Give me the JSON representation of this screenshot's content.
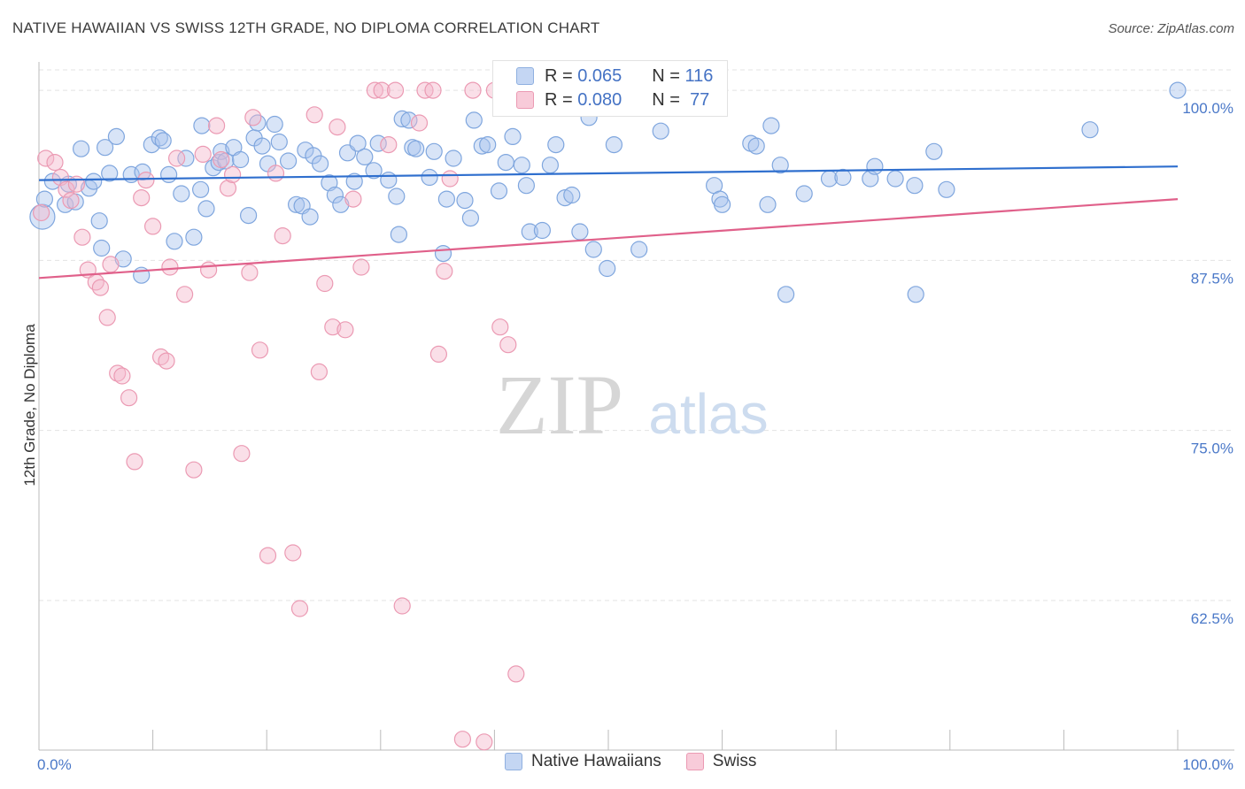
{
  "title": "NATIVE HAWAIIAN VS SWISS 12TH GRADE, NO DIPLOMA CORRELATION CHART",
  "source": "Source: ZipAtlas.com",
  "watermark": {
    "zip": "ZIP",
    "atlas": "atlas"
  },
  "legend": {
    "r_label": "R =",
    "n_label": "N =",
    "series1": {
      "r": "0.065",
      "n": "116"
    },
    "series2": {
      "r": "0.080",
      "n": "77"
    }
  },
  "bottom_legend": [
    "Native Hawaiians",
    "Swiss"
  ],
  "colors": {
    "blue_fill": "#a8c4ee",
    "blue_stroke": "#7fa6de",
    "blue_line": "#2f6fce",
    "pink_fill": "#f5b8cb",
    "pink_stroke": "#eb9ab3",
    "pink_line": "#e0608a",
    "tick_label": "#4a78c8",
    "grid": "#e3e3e3"
  },
  "chart_data": {
    "type": "scatter",
    "title": "NATIVE HAWAIIAN VS SWISS 12TH GRADE, NO DIPLOMA CORRELATION CHART",
    "xlabel": "",
    "ylabel": "12th Grade, No Diploma",
    "xlim": [
      0,
      100
    ],
    "ylim": [
      51.5,
      101.5
    ],
    "x_tick_labels": [
      "0.0%",
      "100.0%"
    ],
    "y_ticks": [
      62.5,
      75.0,
      87.5,
      100.0
    ],
    "y_tick_labels": [
      "62.5%",
      "75.0%",
      "87.5%",
      "100.0%"
    ],
    "grid": true,
    "legend_position": "top-center",
    "series": [
      {
        "name": "Native Hawaiians",
        "r": 0.065,
        "n": 116,
        "trend": [
          [
            0,
            93.4
          ],
          [
            100,
            94.4
          ]
        ],
        "points": [
          [
            0.3,
            90.7
          ],
          [
            0.5,
            92.0
          ],
          [
            1.2,
            93.3
          ],
          [
            2.3,
            91.6
          ],
          [
            2.6,
            93.1
          ],
          [
            3.2,
            91.8
          ],
          [
            3.7,
            95.7
          ],
          [
            4.4,
            92.8
          ],
          [
            4.8,
            93.3
          ],
          [
            5.3,
            90.4
          ],
          [
            5.5,
            88.4
          ],
          [
            5.8,
            95.8
          ],
          [
            6.2,
            93.9
          ],
          [
            6.8,
            96.6
          ],
          [
            7.4,
            87.6
          ],
          [
            8.1,
            93.8
          ],
          [
            9.0,
            86.4
          ],
          [
            9.1,
            94.0
          ],
          [
            9.9,
            96.0
          ],
          [
            10.6,
            96.5
          ],
          [
            10.9,
            96.3
          ],
          [
            11.4,
            93.8
          ],
          [
            11.9,
            88.9
          ],
          [
            12.5,
            92.4
          ],
          [
            12.9,
            95.0
          ],
          [
            13.6,
            89.2
          ],
          [
            14.2,
            92.7
          ],
          [
            14.3,
            97.4
          ],
          [
            14.7,
            91.3
          ],
          [
            15.3,
            94.3
          ],
          [
            15.8,
            94.7
          ],
          [
            16.0,
            95.5
          ],
          [
            16.4,
            94.8
          ],
          [
            17.1,
            95.8
          ],
          [
            17.7,
            94.9
          ],
          [
            18.4,
            90.8
          ],
          [
            18.9,
            96.5
          ],
          [
            19.2,
            97.6
          ],
          [
            19.6,
            95.9
          ],
          [
            20.1,
            94.6
          ],
          [
            20.7,
            97.5
          ],
          [
            21.1,
            96.2
          ],
          [
            21.9,
            94.8
          ],
          [
            22.6,
            91.6
          ],
          [
            23.1,
            91.5
          ],
          [
            23.4,
            95.6
          ],
          [
            23.8,
            90.7
          ],
          [
            24.1,
            95.2
          ],
          [
            24.7,
            94.6
          ],
          [
            25.5,
            93.2
          ],
          [
            26.0,
            92.3
          ],
          [
            26.5,
            91.6
          ],
          [
            27.1,
            95.4
          ],
          [
            27.7,
            93.3
          ],
          [
            28.0,
            96.1
          ],
          [
            28.6,
            95.1
          ],
          [
            29.4,
            94.1
          ],
          [
            29.8,
            96.1
          ],
          [
            30.7,
            93.4
          ],
          [
            31.4,
            92.2
          ],
          [
            31.6,
            89.4
          ],
          [
            31.9,
            97.9
          ],
          [
            32.5,
            97.8
          ],
          [
            32.8,
            95.8
          ],
          [
            33.1,
            95.7
          ],
          [
            34.3,
            93.6
          ],
          [
            34.7,
            95.5
          ],
          [
            35.5,
            88.0
          ],
          [
            35.8,
            92.0
          ],
          [
            36.4,
            95.0
          ],
          [
            37.4,
            91.9
          ],
          [
            37.9,
            90.6
          ],
          [
            38.2,
            97.8
          ],
          [
            38.9,
            95.9
          ],
          [
            39.4,
            96.0
          ],
          [
            40.4,
            92.6
          ],
          [
            41.0,
            94.7
          ],
          [
            41.6,
            96.6
          ],
          [
            42.4,
            94.5
          ],
          [
            42.8,
            93.0
          ],
          [
            43.1,
            89.6
          ],
          [
            44.2,
            89.7
          ],
          [
            44.9,
            94.5
          ],
          [
            45.4,
            96.0
          ],
          [
            46.2,
            92.1
          ],
          [
            46.8,
            92.3
          ],
          [
            47.5,
            89.6
          ],
          [
            48.3,
            98.0
          ],
          [
            48.7,
            88.3
          ],
          [
            49.9,
            86.9
          ],
          [
            50.5,
            96.0
          ],
          [
            52.0,
            100.0
          ],
          [
            52.7,
            88.3
          ],
          [
            54.6,
            97.0
          ],
          [
            55.5,
            100.0
          ],
          [
            56.4,
            100.0
          ],
          [
            59.3,
            93.0
          ],
          [
            59.8,
            92.0
          ],
          [
            60.0,
            91.6
          ],
          [
            62.5,
            96.1
          ],
          [
            63.0,
            95.9
          ],
          [
            64.0,
            91.6
          ],
          [
            64.3,
            97.4
          ],
          [
            65.1,
            94.5
          ],
          [
            65.6,
            85.0
          ],
          [
            67.2,
            92.4
          ],
          [
            69.4,
            93.5
          ],
          [
            70.6,
            93.6
          ],
          [
            73.0,
            93.5
          ],
          [
            73.4,
            94.4
          ],
          [
            75.2,
            93.5
          ],
          [
            76.9,
            93.0
          ],
          [
            77.0,
            85.0
          ],
          [
            78.6,
            95.5
          ],
          [
            79.7,
            92.7
          ],
          [
            92.3,
            97.1
          ],
          [
            100.0,
            100.0
          ]
        ]
      },
      {
        "name": "Swiss",
        "r": 0.08,
        "n": 77,
        "trend": [
          [
            0,
            86.2
          ],
          [
            100,
            92.0
          ]
        ],
        "points": [
          [
            0.2,
            91.0
          ],
          [
            0.6,
            95.0
          ],
          [
            1.4,
            94.7
          ],
          [
            1.9,
            93.6
          ],
          [
            2.4,
            92.7
          ],
          [
            2.8,
            91.9
          ],
          [
            3.3,
            93.1
          ],
          [
            3.8,
            89.2
          ],
          [
            4.3,
            86.8
          ],
          [
            5.0,
            85.9
          ],
          [
            5.4,
            85.5
          ],
          [
            6.0,
            83.3
          ],
          [
            6.3,
            87.2
          ],
          [
            6.9,
            79.2
          ],
          [
            7.3,
            79.0
          ],
          [
            7.9,
            77.4
          ],
          [
            8.4,
            72.7
          ],
          [
            9.0,
            92.1
          ],
          [
            9.4,
            93.4
          ],
          [
            10.0,
            90.0
          ],
          [
            10.7,
            80.4
          ],
          [
            11.2,
            80.1
          ],
          [
            11.5,
            87.0
          ],
          [
            12.1,
            95.0
          ],
          [
            12.8,
            85.0
          ],
          [
            13.6,
            72.1
          ],
          [
            14.4,
            95.3
          ],
          [
            14.9,
            86.8
          ],
          [
            15.6,
            97.4
          ],
          [
            16.0,
            94.9
          ],
          [
            16.6,
            92.8
          ],
          [
            17.0,
            93.8
          ],
          [
            17.8,
            73.3
          ],
          [
            18.5,
            86.6
          ],
          [
            18.8,
            98.0
          ],
          [
            19.4,
            80.9
          ],
          [
            20.1,
            65.8
          ],
          [
            20.8,
            93.9
          ],
          [
            21.4,
            89.3
          ],
          [
            22.3,
            66.0
          ],
          [
            22.9,
            61.9
          ],
          [
            24.2,
            98.2
          ],
          [
            24.6,
            79.3
          ],
          [
            25.1,
            85.8
          ],
          [
            25.8,
            82.6
          ],
          [
            26.2,
            97.3
          ],
          [
            26.9,
            82.4
          ],
          [
            27.6,
            92.0
          ],
          [
            28.3,
            87.0
          ],
          [
            29.5,
            100.0
          ],
          [
            30.1,
            100.0
          ],
          [
            30.7,
            96.0
          ],
          [
            31.3,
            100.0
          ],
          [
            31.9,
            62.1
          ],
          [
            33.4,
            97.6
          ],
          [
            33.9,
            100.0
          ],
          [
            34.6,
            100.0
          ],
          [
            35.1,
            80.6
          ],
          [
            35.6,
            86.7
          ],
          [
            36.1,
            93.5
          ],
          [
            37.2,
            52.3
          ],
          [
            38.1,
            100.0
          ],
          [
            39.1,
            52.1
          ],
          [
            40.0,
            100.0
          ],
          [
            40.5,
            82.6
          ],
          [
            41.2,
            81.3
          ],
          [
            41.9,
            57.1
          ],
          [
            45.2,
            100.0
          ],
          [
            47.4,
            100.0
          ],
          [
            48.3,
            100.0
          ]
        ]
      }
    ]
  }
}
